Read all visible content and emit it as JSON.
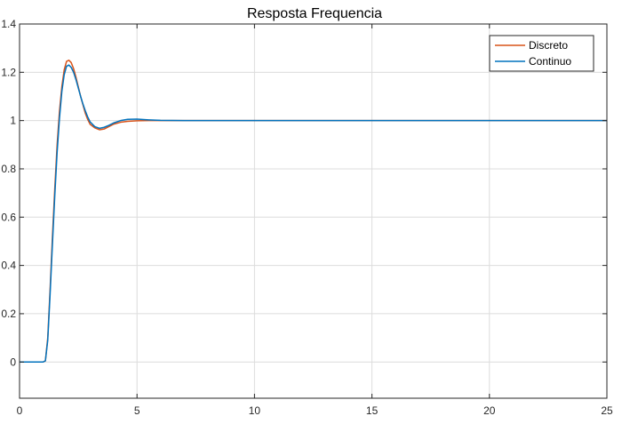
{
  "chart_data": {
    "type": "line",
    "title": "Resposta Frequencia",
    "xlabel": "",
    "ylabel": "",
    "xlim": [
      0,
      25
    ],
    "ylim": [
      -0.15,
      1.4
    ],
    "xticks": [
      0,
      5,
      10,
      15,
      20,
      25
    ],
    "yticks": [
      0,
      0.2,
      0.4,
      0.6,
      0.8,
      1,
      1.2,
      1.4
    ],
    "ytick_labels": [
      "0",
      "0.2",
      "0.4",
      "0.6",
      "0.8",
      "1",
      "1.2",
      "1.4"
    ],
    "grid": true,
    "legend_position": "top-right",
    "series": [
      {
        "name": "Discreto",
        "color": "#D95319",
        "x": [
          0,
          0.5,
          1.0,
          1.1,
          1.2,
          1.3,
          1.4,
          1.5,
          1.6,
          1.7,
          1.8,
          1.9,
          2.0,
          2.1,
          2.2,
          2.3,
          2.4,
          2.5,
          2.6,
          2.7,
          2.8,
          2.9,
          3.0,
          3.2,
          3.4,
          3.6,
          3.8,
          4.0,
          4.3,
          4.6,
          5.0,
          5.5,
          6.0,
          7.0,
          8.0,
          10,
          15,
          20,
          25
        ],
        "y": [
          0,
          0,
          0,
          0.005,
          0.1,
          0.3,
          0.52,
          0.72,
          0.9,
          1.04,
          1.14,
          1.21,
          1.245,
          1.25,
          1.24,
          1.215,
          1.18,
          1.14,
          1.1,
          1.065,
          1.03,
          1.005,
          0.985,
          0.97,
          0.962,
          0.965,
          0.975,
          0.985,
          0.993,
          0.997,
          0.999,
          1.0,
          1.0,
          1.0,
          1.0,
          1.0,
          1.0,
          1.0,
          1.0
        ]
      },
      {
        "name": "Continuo",
        "color": "#0072BD",
        "x": [
          0,
          0.5,
          1.0,
          1.1,
          1.2,
          1.3,
          1.4,
          1.5,
          1.6,
          1.7,
          1.8,
          1.9,
          2.0,
          2.1,
          2.2,
          2.3,
          2.4,
          2.5,
          2.6,
          2.7,
          2.8,
          2.9,
          3.0,
          3.2,
          3.4,
          3.6,
          3.8,
          4.0,
          4.3,
          4.6,
          5.0,
          5.5,
          6.0,
          7.0,
          8.0,
          10,
          15,
          20,
          25
        ],
        "y": [
          0,
          0,
          0,
          0.005,
          0.09,
          0.28,
          0.49,
          0.69,
          0.87,
          1.01,
          1.12,
          1.19,
          1.225,
          1.23,
          1.22,
          1.2,
          1.17,
          1.135,
          1.1,
          1.068,
          1.04,
          1.015,
          0.995,
          0.975,
          0.968,
          0.972,
          0.98,
          0.99,
          1.0,
          1.005,
          1.006,
          1.003,
          1.001,
          1.0,
          1.0,
          1.0,
          1.0,
          1.0,
          1.0
        ]
      }
    ]
  }
}
